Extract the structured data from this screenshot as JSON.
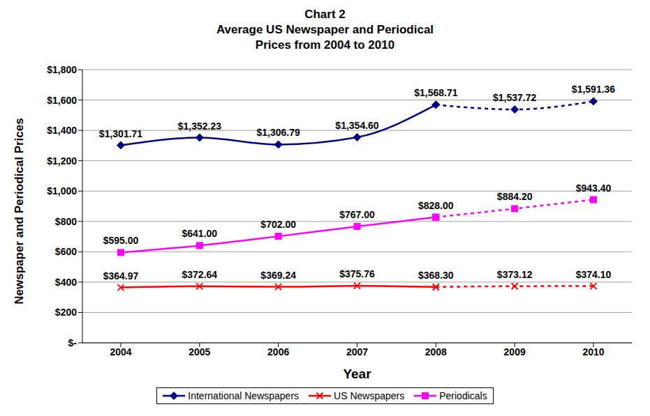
{
  "chart_data": {
    "type": "line",
    "title": [
      "Chart 2",
      "Average US Newspaper and Periodical",
      "Prices from 2004 to 2010"
    ],
    "x_label": "Year",
    "y_label": "Newspaper and Periodical Prices",
    "categories": [
      "2004",
      "2005",
      "2006",
      "2007",
      "2008",
      "2009",
      "2010"
    ],
    "ylim": [
      0,
      1800
    ],
    "yticks": [
      {
        "value": 0,
        "label": "$-"
      },
      {
        "value": 200,
        "label": "$200"
      },
      {
        "value": 400,
        "label": "$400"
      },
      {
        "value": 600,
        "label": "$600"
      },
      {
        "value": 800,
        "label": "$800"
      },
      {
        "value": 1000,
        "label": "$1,000"
      },
      {
        "value": 1200,
        "label": "$1,200"
      },
      {
        "value": 1400,
        "label": "$1,400"
      },
      {
        "value": 1600,
        "label": "$1,600"
      },
      {
        "value": 1800,
        "label": "$1,800"
      }
    ],
    "grid": true,
    "legend": "bottom",
    "data_labels": true,
    "series": [
      {
        "name": "International Newspapers",
        "color": "#000080",
        "marker": "diamond",
        "line_style": "solid",
        "values": [
          1301.71,
          1352.23,
          1306.79,
          1354.6,
          1568.71,
          null,
          null
        ],
        "value_labels": [
          "$1,301.71",
          "$1,352.23",
          "$1,306.79",
          "$1,354.60",
          "$1,568.71",
          null,
          null
        ]
      },
      {
        "name": "US Newspapers",
        "color": "#FF0000",
        "marker": "x",
        "line_style": "solid",
        "values": [
          364.97,
          372.64,
          369.24,
          375.76,
          368.3,
          null,
          null
        ],
        "value_labels": [
          "$364.97",
          "$372.64",
          "$369.24",
          "$375.76",
          "$368.30",
          null,
          null
        ]
      },
      {
        "name": "Periodicals",
        "color": "#FF00FF",
        "marker": "square",
        "line_style": "solid",
        "values": [
          595.0,
          641.0,
          702.0,
          767.0,
          828.0,
          null,
          null
        ],
        "value_labels": [
          "$595.00",
          "$641.00",
          "$702.00",
          "$767.00",
          "$828.00",
          null,
          null
        ]
      },
      {
        "name": "International Newspapers",
        "color": "#000080",
        "marker": "diamond",
        "line_style": "dashed",
        "values": [
          null,
          null,
          null,
          null,
          1568.71,
          1537.72,
          1591.36
        ],
        "value_labels": [
          null,
          null,
          null,
          null,
          "$1,568.71",
          "$1,537.72",
          "$1,591.36"
        ]
      },
      {
        "name": "US Newspapers",
        "color": "#FF0000",
        "marker": "x",
        "line_style": "dashed",
        "values": [
          null,
          null,
          null,
          null,
          368.3,
          373.12,
          374.1
        ],
        "value_labels": [
          null,
          null,
          null,
          null,
          "$368.30",
          "$373.12",
          "$374.10"
        ]
      },
      {
        "name": "Periodicals",
        "color": "#FF00FF",
        "marker": "square",
        "line_style": "dashed",
        "values": [
          null,
          null,
          null,
          null,
          828.0,
          884.2,
          943.4
        ],
        "value_labels": [
          null,
          null,
          null,
          null,
          "$828.00",
          "$884.20",
          "$943.40"
        ]
      }
    ]
  }
}
